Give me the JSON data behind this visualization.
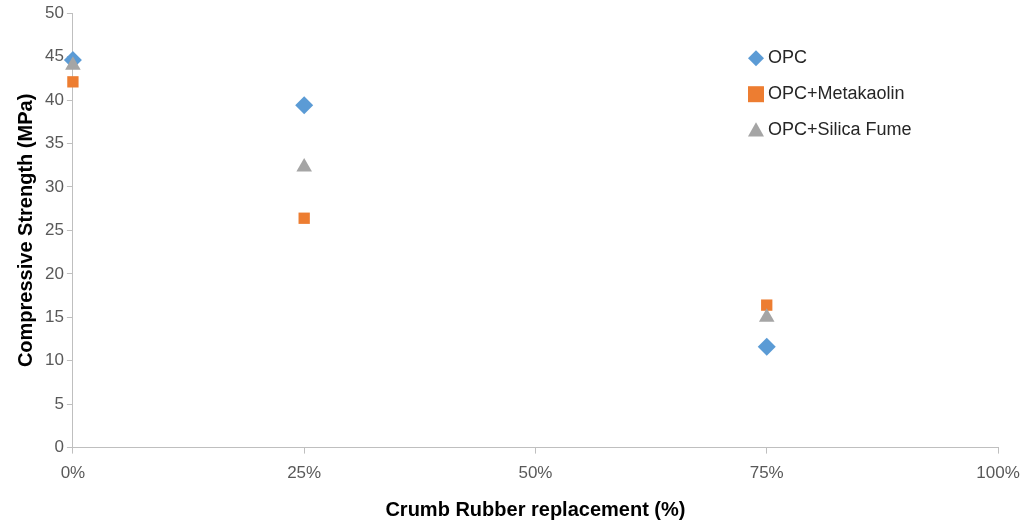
{
  "chart_data": {
    "type": "scatter",
    "xlabel": "Crumb Rubber replacement (%)",
    "ylabel": "Compressive Strength (MPa)",
    "x": [
      0,
      25,
      75
    ],
    "series": [
      {
        "name": "OPC",
        "color": "#5b9bd5",
        "marker": "diamond",
        "values": [
          44.6,
          39.4,
          11.6
        ]
      },
      {
        "name": "OPC+Metakaolin",
        "color": "#ed7d31",
        "marker": "square",
        "values": [
          42.1,
          26.4,
          16.4
        ]
      },
      {
        "name": "OPC+Silica Fume",
        "color": "#a5a5a5",
        "marker": "triangle",
        "values": [
          44.0,
          32.3,
          15.0
        ]
      }
    ],
    "xlim": [
      0,
      100
    ],
    "xticks": [
      {
        "value": 0,
        "label": "0%"
      },
      {
        "value": 25,
        "label": "25%"
      },
      {
        "value": 50,
        "label": "50%"
      },
      {
        "value": 75,
        "label": "75%"
      },
      {
        "value": 100,
        "label": "100%"
      }
    ],
    "ylim": [
      0,
      50
    ],
    "yticks": [
      0,
      5,
      10,
      15,
      20,
      25,
      30,
      35,
      40,
      45,
      50
    ],
    "grid": false,
    "legend": "top right"
  }
}
